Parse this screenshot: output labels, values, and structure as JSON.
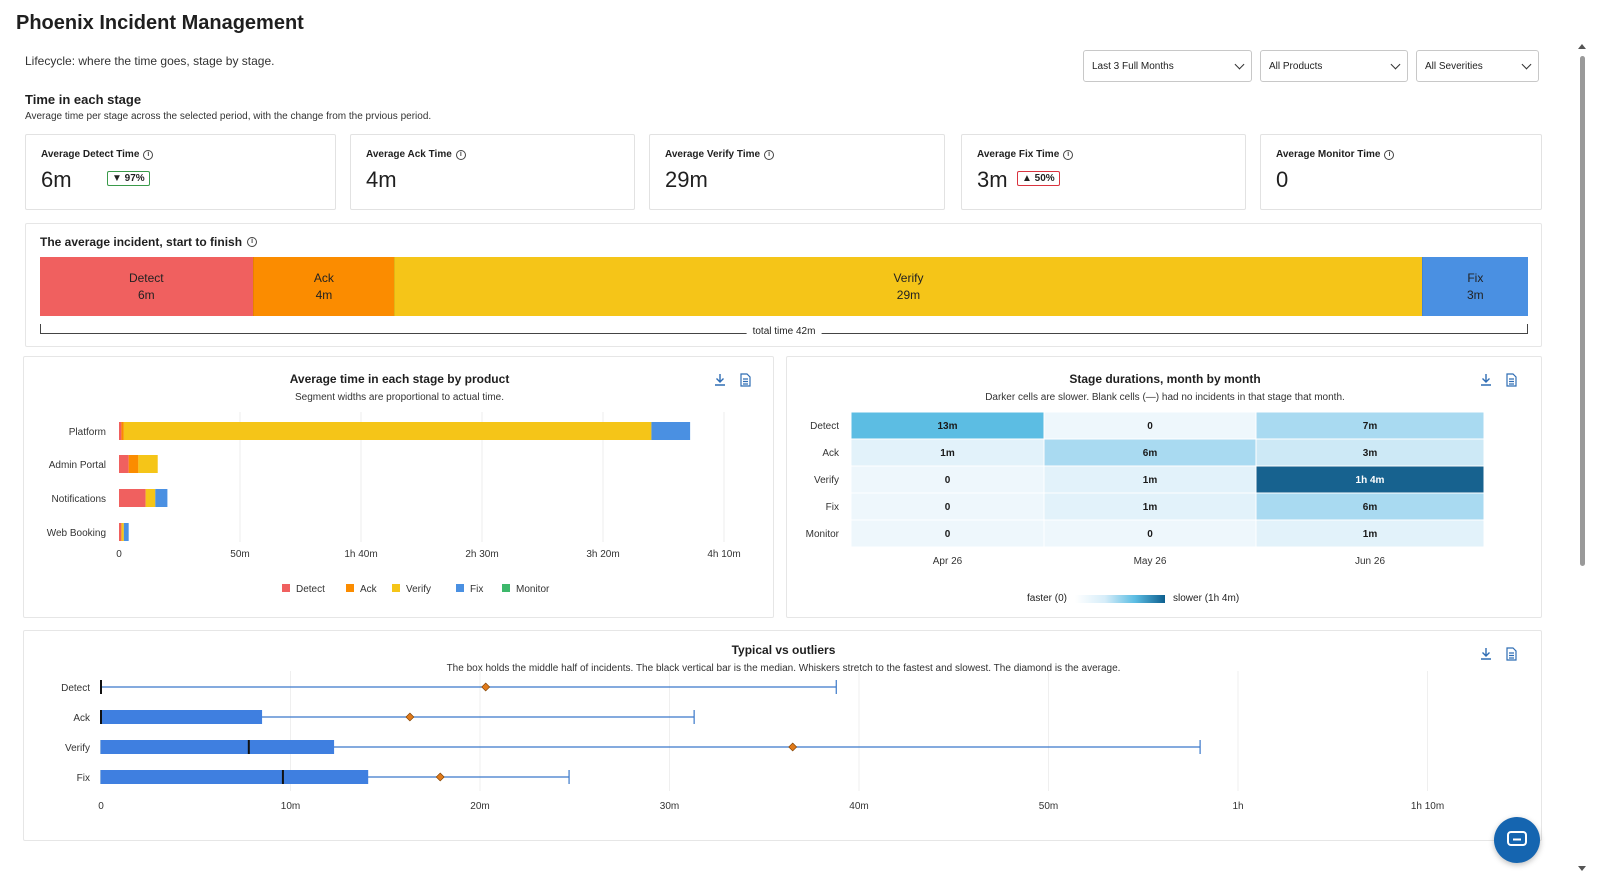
{
  "app": {
    "title": "Phoenix Incident Management",
    "subtitle": "Lifecycle: where the time goes, stage by stage."
  },
  "filters": {
    "period": "Last 3 Full Months",
    "products": "All Products",
    "severities": "All Severities"
  },
  "time_section": {
    "title": "Time in each stage",
    "subtitle": "Average time per stage across the selected period, with the change from the prvious period."
  },
  "kpis": [
    {
      "label": "Average Detect Time",
      "value": "6m",
      "change": "▼ 97%",
      "change_dir": "down"
    },
    {
      "label": "Average Ack Time",
      "value": "4m"
    },
    {
      "label": "Average Verify Time",
      "value": "29m"
    },
    {
      "label": "Average Fix Time",
      "value": "3m",
      "change": "▲ 50%",
      "change_dir": "up"
    },
    {
      "label": "Average Monitor Time",
      "value": "0"
    }
  ],
  "timeline": {
    "title": "The average incident, start to finish",
    "total_label": "total time 42m",
    "segments": [
      {
        "name": "Detect",
        "value": "6m",
        "minutes": 6,
        "color": "#f0605f"
      },
      {
        "name": "Ack",
        "value": "4m",
        "minutes": 4,
        "color": "#fb8c00"
      },
      {
        "name": "Verify",
        "value": "29m",
        "minutes": 29,
        "color": "#f5c518"
      },
      {
        "name": "Fix",
        "value": "3m",
        "minutes": 3,
        "color": "#4a90e2"
      }
    ]
  },
  "product_chart": {
    "title": "Average time in each stage by product",
    "subtitle": "Segment widths are proportional to actual time.",
    "legend": [
      {
        "name": "Detect",
        "color": "#f0605f"
      },
      {
        "name": "Ack",
        "color": "#fb8c00"
      },
      {
        "name": "Verify",
        "color": "#f5c518"
      },
      {
        "name": "Fix",
        "color": "#4a90e2"
      },
      {
        "name": "Monitor",
        "color": "#3db86b"
      }
    ],
    "x_ticks": [
      "0",
      "50m",
      "1h 40m",
      "2h 30m",
      "3h 20m",
      "4h 10m"
    ]
  },
  "heatmap": {
    "title": "Stage durations, month by month",
    "subtitle": "Darker cells are slower. Blank cells (—) had no incidents in that stage that month.",
    "legend_low": "faster (0)",
    "legend_high": "slower (1h 4m)"
  },
  "box_chart": {
    "title": "Typical vs outliers",
    "subtitle": "The box holds the middle half of incidents. The black vertical bar is the median. Whiskers stretch to the fastest and slowest. The diamond is the average.",
    "x_ticks": [
      "0",
      "10m",
      "20m",
      "30m",
      "40m",
      "50m",
      "1h",
      "1h 10m"
    ]
  },
  "chart_data": [
    {
      "type": "bar",
      "title": "Average time in each stage by product",
      "stacked": true,
      "orientation": "horizontal",
      "unit": "minutes",
      "xlim": [
        0,
        250
      ],
      "categories": [
        "Platform",
        "Admin Portal",
        "Notifications",
        "Web Booking"
      ],
      "series": [
        {
          "name": "Detect",
          "values": [
            1,
            4,
            11,
            1
          ]
        },
        {
          "name": "Ack",
          "values": [
            1,
            4,
            0,
            0
          ]
        },
        {
          "name": "Verify",
          "values": [
            218,
            8,
            4,
            1
          ]
        },
        {
          "name": "Fix",
          "values": [
            16,
            0,
            5,
            2
          ]
        },
        {
          "name": "Monitor",
          "values": [
            0,
            0,
            0,
            0
          ]
        }
      ]
    },
    {
      "type": "heatmap",
      "title": "Stage durations, month by month",
      "rows": [
        "Detect",
        "Ack",
        "Verify",
        "Fix",
        "Monitor"
      ],
      "columns": [
        "Apr 26",
        "May 26",
        "Jun 26"
      ],
      "labels": [
        [
          "13m",
          "0",
          "7m"
        ],
        [
          "1m",
          "6m",
          "3m"
        ],
        [
          "0",
          "1m",
          "1h 4m"
        ],
        [
          "0",
          "1m",
          "6m"
        ],
        [
          "0",
          "0",
          "1m"
        ]
      ],
      "minutes": [
        [
          13,
          0,
          7
        ],
        [
          1,
          6,
          3
        ],
        [
          0,
          1,
          64
        ],
        [
          0,
          1,
          6
        ],
        [
          0,
          0,
          1
        ]
      ],
      "scale_max_minutes": 64
    },
    {
      "type": "box",
      "title": "Typical vs outliers",
      "unit": "minutes",
      "xlim": [
        0,
        75
      ],
      "categories": [
        "Detect",
        "Ack",
        "Verify",
        "Fix"
      ],
      "series": [
        {
          "stage": "Detect",
          "min": 0,
          "q1": 0,
          "median": 0,
          "q3": 0,
          "max": 38.8,
          "mean": 20.3
        },
        {
          "stage": "Ack",
          "min": 0,
          "q1": 0,
          "median": 0,
          "q3": 8.5,
          "max": 31.3,
          "mean": 16.3
        },
        {
          "stage": "Verify",
          "min": 0,
          "q1": 0,
          "median": 7.8,
          "q3": 12.3,
          "max": 58.0,
          "mean": 36.5
        },
        {
          "stage": "Fix",
          "min": 0,
          "q1": 0,
          "median": 9.6,
          "q3": 14.1,
          "max": 24.7,
          "mean": 17.9
        }
      ]
    }
  ]
}
